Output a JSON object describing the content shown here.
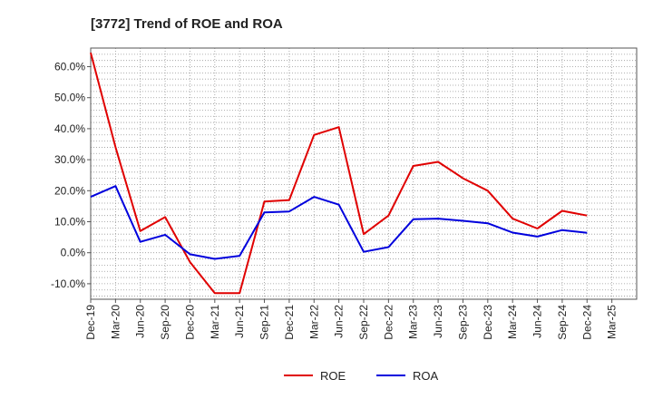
{
  "chart_data": {
    "type": "line",
    "title": "[3772]  Trend of ROE and ROA",
    "xlabel": "",
    "ylabel": "",
    "ylim": [
      -15,
      66
    ],
    "yticks": [
      -10,
      0,
      10,
      20,
      30,
      40,
      50,
      60
    ],
    "ytick_labels": [
      "-10.0%",
      "0.0%",
      "10.0%",
      "20.0%",
      "30.0%",
      "40.0%",
      "50.0%",
      "60.0%"
    ],
    "x": [
      "Dec-19",
      "Mar-20",
      "Jun-20",
      "Sep-20",
      "Dec-20",
      "Mar-21",
      "Jun-21",
      "Sep-21",
      "Dec-21",
      "Mar-22",
      "Jun-22",
      "Sep-22",
      "Dec-22",
      "Mar-23",
      "Jun-23",
      "Sep-23",
      "Dec-23",
      "Mar-24",
      "Jun-24",
      "Sep-24",
      "Dec-24",
      "Mar-25"
    ],
    "grid": true,
    "legend_position": "bottom",
    "series": [
      {
        "name": "ROE",
        "color": "#e00000",
        "values": [
          64.5,
          34.0,
          7.0,
          11.5,
          -3.0,
          -13.0,
          -13.0,
          16.5,
          17.0,
          38.0,
          40.5,
          6.0,
          12.0,
          28.0,
          29.3,
          24.0,
          20.0,
          11.0,
          7.8,
          13.5,
          12.0,
          null
        ]
      },
      {
        "name": "ROA",
        "color": "#0000dd",
        "values": [
          18.0,
          21.5,
          3.5,
          5.8,
          -0.5,
          -2.0,
          -1.0,
          13.0,
          13.3,
          18.0,
          15.5,
          0.3,
          1.8,
          10.8,
          11.0,
          10.3,
          9.5,
          6.5,
          5.2,
          7.3,
          6.4,
          null
        ]
      }
    ]
  }
}
